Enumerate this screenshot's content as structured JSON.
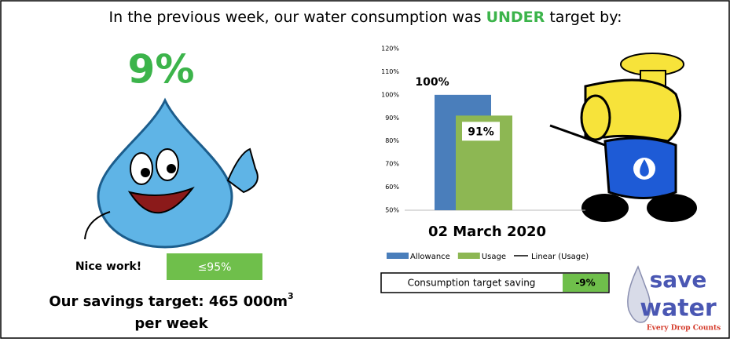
{
  "header": {
    "before": "In the previous week, our water consumption was",
    "highlight": "UNDER",
    "after": "target by:"
  },
  "big_value": "9%",
  "nice_work": {
    "label": "Nice work!",
    "badge": "≤95%"
  },
  "savings": {
    "line1": "Our savings target: 465 000m",
    "superscript": "3",
    "line2": "per week"
  },
  "table": {
    "label": "Consumption target saving",
    "value": "-9%"
  },
  "logo": {
    "line1": "save",
    "line2": "water",
    "tagline": "Every Drop Counts"
  },
  "chart_data": {
    "type": "bar",
    "categories": [
      "02 March 2020"
    ],
    "series": [
      {
        "name": "Allowance",
        "color": "#4a7ebb",
        "values": [
          100
        ],
        "value_labels": [
          "100%"
        ]
      },
      {
        "name": "Usage",
        "color": "#8db753",
        "values": [
          91
        ],
        "value_labels": [
          "91%"
        ]
      }
    ],
    "trendline": {
      "name": "Linear (Usage)",
      "color": "#000000"
    },
    "ylim": [
      50,
      120
    ],
    "yticks": [
      {
        "value": 50,
        "label": "50%"
      },
      {
        "value": 60,
        "label": "60%"
      },
      {
        "value": 70,
        "label": "70%"
      },
      {
        "value": 80,
        "label": "80%"
      },
      {
        "value": 90,
        "label": "90%"
      },
      {
        "value": 100,
        "label": "100%"
      },
      {
        "value": 110,
        "label": "110%"
      },
      {
        "value": 120,
        "label": "120%"
      }
    ],
    "grid": false
  }
}
